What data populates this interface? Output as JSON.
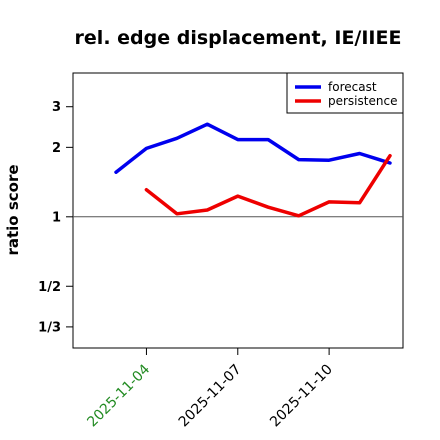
{
  "chart_data": {
    "type": "line",
    "title": "rel. edge displacement, IE/IIEE",
    "xlabel": "",
    "ylabel": "ratio score",
    "y_scale": "reciprocal-log",
    "ylim": [
      0.27,
      4.2
    ],
    "xlim": [
      "2025-11-03",
      "2025-11-12"
    ],
    "y_ticks": [
      {
        "value": 3,
        "label": "3"
      },
      {
        "value": 2,
        "label": "2"
      },
      {
        "value": 1,
        "label": "1"
      },
      {
        "value": 0.5,
        "label": "1/2"
      },
      {
        "value": 0.3333,
        "label": "1/3"
      }
    ],
    "x_ticks": [
      {
        "value": "2025-11-04",
        "label": "2025-11-04",
        "color": "#228b22"
      },
      {
        "value": "2025-11-07",
        "label": "2025-11-07",
        "color": "#000000"
      },
      {
        "value": "2025-11-10",
        "label": "2025-11-10",
        "color": "#000000"
      }
    ],
    "reference_line": 1,
    "grid": false,
    "legend_position": "top-right",
    "series": [
      {
        "name": "forecast",
        "color": "#0000ee",
        "points": [
          {
            "x": "2025-11-03",
            "y": 1.56
          },
          {
            "x": "2025-11-04",
            "y": 1.98
          },
          {
            "x": "2025-11-05",
            "y": 2.19
          },
          {
            "x": "2025-11-06",
            "y": 2.52
          },
          {
            "x": "2025-11-07",
            "y": 2.16
          },
          {
            "x": "2025-11-08",
            "y": 2.16
          },
          {
            "x": "2025-11-09",
            "y": 1.77
          },
          {
            "x": "2025-11-10",
            "y": 1.76
          },
          {
            "x": "2025-11-11",
            "y": 1.88
          },
          {
            "x": "2025-11-12",
            "y": 1.71
          }
        ]
      },
      {
        "name": "persistence",
        "color": "#ee0000",
        "points": [
          {
            "x": "2025-11-04",
            "y": 1.31
          },
          {
            "x": "2025-11-05",
            "y": 1.03
          },
          {
            "x": "2025-11-06",
            "y": 1.07
          },
          {
            "x": "2025-11-07",
            "y": 1.23
          },
          {
            "x": "2025-11-08",
            "y": 1.1
          },
          {
            "x": "2025-11-09",
            "y": 1.01
          },
          {
            "x": "2025-11-10",
            "y": 1.16
          },
          {
            "x": "2025-11-11",
            "y": 1.15
          },
          {
            "x": "2025-11-12",
            "y": 1.84
          }
        ]
      }
    ]
  }
}
